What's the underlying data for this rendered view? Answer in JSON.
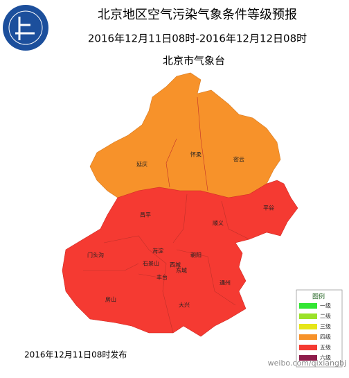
{
  "header": {
    "title": "北京地区空气污染气象条件等级预报",
    "period": "2016年12月11日08时-2016年12月12日08时",
    "issuer": "北京市气象台"
  },
  "districts": [
    "延庆",
    "怀柔",
    "密云",
    "平谷",
    "昌平",
    "顺义",
    "门头沟",
    "海淀",
    "朝阳",
    "石景山",
    "西城",
    "东城",
    "丰台",
    "通州",
    "房山",
    "大兴"
  ],
  "legend": {
    "title": "图例",
    "items": [
      {
        "label": "一级",
        "color": "#33e633"
      },
      {
        "label": "二级",
        "color": "#9be22a"
      },
      {
        "label": "三级",
        "color": "#e6e619"
      },
      {
        "label": "四级",
        "color": "#f7922a"
      },
      {
        "label": "五级",
        "color": "#f53a32"
      },
      {
        "label": "六级",
        "color": "#8e1c4a"
      }
    ]
  },
  "footer": {
    "published": "2016年12月11日08时发布",
    "watermark": "weibo.com/qixiangbj"
  }
}
